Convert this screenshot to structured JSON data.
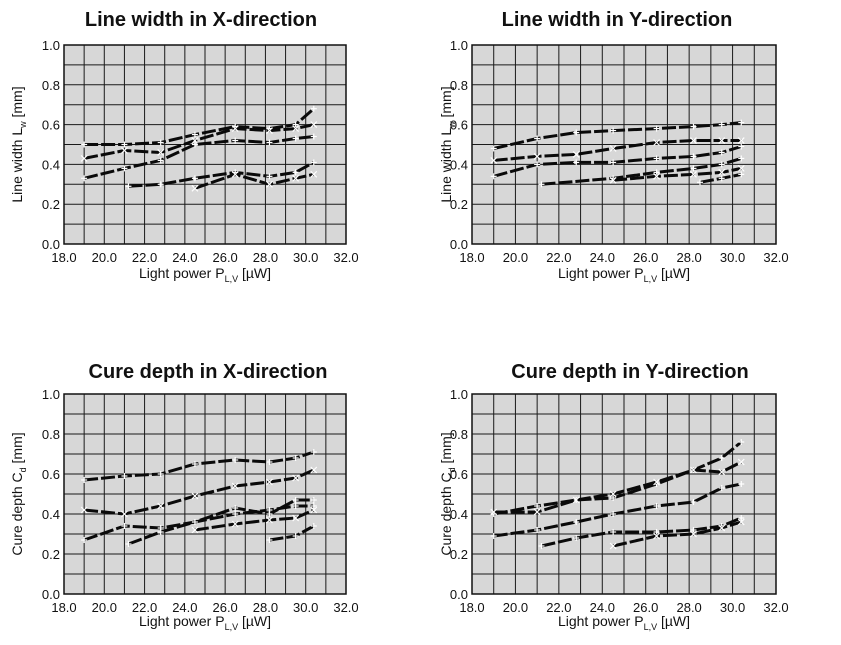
{
  "chart_data": [
    {
      "type": "line",
      "title": "Line width in X-direction",
      "xlabel": "Light power P",
      "xlabel_sub": "L,V",
      "xlabel_unit": " [µW]",
      "ylabel": "Line width L",
      "ylabel_sub": "w",
      "ylabel_unit": " [mm]",
      "xlim": [
        18.0,
        32.0
      ],
      "ylim": [
        0.0,
        1.0
      ],
      "xticks": [
        "18.0",
        "20.0",
        "22.0",
        "24.0",
        "26.0",
        "28.0",
        "30.0",
        "32.0"
      ],
      "yticks": [
        "0.0",
        "0.2",
        "0.4",
        "0.6",
        "0.8",
        "1.0"
      ],
      "grid": true,
      "series": [
        {
          "marker": "+",
          "points": [
            [
              19.0,
              0.5
            ],
            [
              21.0,
              0.5
            ],
            [
              22.8,
              0.51
            ],
            [
              24.5,
              0.55
            ],
            [
              26.5,
              0.59
            ],
            [
              28.2,
              0.58
            ],
            [
              29.5,
              0.6
            ],
            [
              30.4,
              0.68
            ]
          ]
        },
        {
          "marker": "x",
          "points": [
            [
              19.0,
              0.43
            ],
            [
              21.0,
              0.47
            ],
            [
              22.8,
              0.46
            ],
            [
              24.5,
              0.52
            ],
            [
              26.5,
              0.58
            ],
            [
              28.2,
              0.57
            ],
            [
              29.5,
              0.58
            ],
            [
              30.4,
              0.6
            ]
          ]
        },
        {
          "marker": "+",
          "points": [
            [
              19.0,
              0.33
            ],
            [
              21.0,
              0.38
            ],
            [
              22.8,
              0.42
            ],
            [
              24.5,
              0.5
            ],
            [
              26.5,
              0.52
            ],
            [
              28.2,
              0.51
            ],
            [
              29.5,
              0.53
            ],
            [
              30.4,
              0.54
            ]
          ]
        },
        {
          "marker": "+",
          "points": [
            [
              21.2,
              0.29
            ],
            [
              22.8,
              0.3
            ],
            [
              24.5,
              0.33
            ],
            [
              26.5,
              0.36
            ],
            [
              28.2,
              0.34
            ],
            [
              29.5,
              0.36
            ],
            [
              30.4,
              0.41
            ]
          ]
        },
        {
          "marker": "x",
          "points": [
            [
              24.5,
              0.28
            ],
            [
              26.5,
              0.35
            ],
            [
              28.2,
              0.3
            ],
            [
              29.5,
              0.33
            ],
            [
              30.4,
              0.35
            ]
          ]
        }
      ]
    },
    {
      "type": "line",
      "title": "Line width in Y-direction",
      "xlabel": "Light power P",
      "xlabel_sub": "L,V",
      "xlabel_unit": " [µW]",
      "ylabel": "Line width L",
      "ylabel_sub": "w",
      "ylabel_unit": " [mm]",
      "xlim": [
        18.0,
        32.0
      ],
      "ylim": [
        0.0,
        1.0
      ],
      "xticks": [
        "18.0",
        "20.0",
        "22.0",
        "24.0",
        "26.0",
        "28.0",
        "30.0",
        "32.0"
      ],
      "yticks": [
        "0.0",
        "0.2",
        "0.4",
        "0.6",
        "0.8",
        "1.0"
      ],
      "grid": true,
      "series": [
        {
          "marker": "+",
          "points": [
            [
              19.0,
              0.48
            ],
            [
              21.0,
              0.53
            ],
            [
              22.8,
              0.56
            ],
            [
              24.5,
              0.57
            ],
            [
              26.5,
              0.58
            ],
            [
              28.2,
              0.59
            ],
            [
              29.5,
              0.6
            ],
            [
              30.4,
              0.61
            ]
          ]
        },
        {
          "marker": "x",
          "points": [
            [
              19.0,
              0.42
            ],
            [
              21.0,
              0.44
            ],
            [
              22.8,
              0.45
            ],
            [
              24.5,
              0.48
            ],
            [
              26.5,
              0.51
            ],
            [
              28.2,
              0.52
            ],
            [
              29.5,
              0.52
            ],
            [
              30.4,
              0.52
            ]
          ]
        },
        {
          "marker": "+",
          "points": [
            [
              19.0,
              0.34
            ],
            [
              21.0,
              0.4
            ],
            [
              22.8,
              0.41
            ],
            [
              24.5,
              0.41
            ],
            [
              26.5,
              0.43
            ],
            [
              28.2,
              0.44
            ],
            [
              29.5,
              0.46
            ],
            [
              30.4,
              0.49
            ]
          ]
        },
        {
          "marker": "+",
          "points": [
            [
              21.2,
              0.3
            ],
            [
              24.5,
              0.33
            ],
            [
              26.5,
              0.36
            ],
            [
              28.2,
              0.38
            ],
            [
              29.5,
              0.4
            ],
            [
              30.4,
              0.43
            ]
          ]
        },
        {
          "marker": "x",
          "points": [
            [
              24.5,
              0.32
            ],
            [
              26.5,
              0.34
            ],
            [
              28.2,
              0.35
            ],
            [
              29.5,
              0.36
            ],
            [
              30.4,
              0.38
            ]
          ]
        },
        {
          "marker": "+",
          "points": [
            [
              28.5,
              0.31
            ],
            [
              29.5,
              0.33
            ],
            [
              30.4,
              0.35
            ]
          ]
        }
      ]
    },
    {
      "type": "line",
      "title": "Cure depth in X-direction",
      "xlabel": "Light power P",
      "xlabel_sub": "L,V",
      "xlabel_unit": " [µW]",
      "ylabel": "Cure depth C",
      "ylabel_sub": "d",
      "ylabel_unit": " [mm]",
      "xlim": [
        18.0,
        32.0
      ],
      "ylim": [
        0.0,
        1.0
      ],
      "xticks": [
        "18.0",
        "20.0",
        "22.0",
        "24.0",
        "26.0",
        "28.0",
        "30.0",
        "32.0"
      ],
      "yticks": [
        "0.0",
        "0.2",
        "0.4",
        "0.6",
        "0.8",
        "1.0"
      ],
      "grid": true,
      "series": [
        {
          "marker": "+",
          "points": [
            [
              19.0,
              0.57
            ],
            [
              21.0,
              0.59
            ],
            [
              22.8,
              0.6
            ],
            [
              24.5,
              0.65
            ],
            [
              26.5,
              0.67
            ],
            [
              28.2,
              0.66
            ],
            [
              29.5,
              0.68
            ],
            [
              30.4,
              0.71
            ]
          ]
        },
        {
          "marker": "x",
          "points": [
            [
              19.0,
              0.42
            ],
            [
              21.0,
              0.4
            ],
            [
              22.8,
              0.44
            ],
            [
              24.5,
              0.49
            ],
            [
              26.5,
              0.54
            ],
            [
              28.2,
              0.56
            ],
            [
              29.5,
              0.58
            ],
            [
              30.4,
              0.62
            ]
          ]
        },
        {
          "marker": "+",
          "points": [
            [
              19.0,
              0.27
            ],
            [
              21.0,
              0.34
            ],
            [
              22.8,
              0.33
            ],
            [
              24.5,
              0.36
            ],
            [
              26.5,
              0.43
            ],
            [
              28.2,
              0.4
            ],
            [
              29.5,
              0.47
            ],
            [
              30.4,
              0.47
            ]
          ]
        },
        {
          "marker": "+",
          "points": [
            [
              21.2,
              0.25
            ],
            [
              22.8,
              0.31
            ],
            [
              24.5,
              0.36
            ],
            [
              26.5,
              0.4
            ],
            [
              28.2,
              0.42
            ],
            [
              29.5,
              0.44
            ],
            [
              30.4,
              0.44
            ]
          ]
        },
        {
          "marker": "x",
          "points": [
            [
              24.5,
              0.32
            ],
            [
              26.5,
              0.35
            ],
            [
              28.2,
              0.37
            ],
            [
              29.5,
              0.38
            ],
            [
              30.4,
              0.42
            ]
          ]
        },
        {
          "marker": "+",
          "points": [
            [
              28.2,
              0.27
            ],
            [
              29.5,
              0.29
            ],
            [
              30.4,
              0.34
            ]
          ]
        }
      ]
    },
    {
      "type": "line",
      "title": "Cure depth in Y-direction",
      "xlabel": "Light power P",
      "xlabel_sub": "L,V",
      "xlabel_unit": " [µW]",
      "ylabel": "Cure depth C",
      "ylabel_sub": "d",
      "ylabel_unit": " [mm]",
      "xlim": [
        18.0,
        32.0
      ],
      "ylim": [
        0.0,
        1.0
      ],
      "xticks": [
        "18.0",
        "20.0",
        "22.0",
        "24.0",
        "26.0",
        "28.0",
        "30.0",
        "32.0"
      ],
      "yticks": [
        "0.0",
        "0.2",
        "0.4",
        "0.6",
        "0.8",
        "1.0"
      ],
      "grid": true,
      "series": [
        {
          "marker": "+",
          "points": [
            [
              19.0,
              0.4
            ],
            [
              21.0,
              0.44
            ],
            [
              22.8,
              0.47
            ],
            [
              24.5,
              0.48
            ],
            [
              26.5,
              0.55
            ],
            [
              28.2,
              0.62
            ],
            [
              29.5,
              0.68
            ],
            [
              30.4,
              0.76
            ]
          ]
        },
        {
          "marker": "x",
          "points": [
            [
              19.0,
              0.41
            ],
            [
              21.0,
              0.41
            ],
            [
              22.8,
              0.47
            ],
            [
              24.5,
              0.5
            ],
            [
              26.5,
              0.56
            ],
            [
              28.2,
              0.62
            ],
            [
              29.5,
              0.61
            ],
            [
              30.4,
              0.66
            ]
          ]
        },
        {
          "marker": "+",
          "points": [
            [
              19.0,
              0.29
            ],
            [
              21.0,
              0.32
            ],
            [
              22.8,
              0.36
            ],
            [
              24.5,
              0.4
            ],
            [
              26.5,
              0.44
            ],
            [
              28.2,
              0.46
            ],
            [
              29.5,
              0.53
            ],
            [
              30.4,
              0.55
            ]
          ]
        },
        {
          "marker": "+",
          "points": [
            [
              21.2,
              0.24
            ],
            [
              22.8,
              0.28
            ],
            [
              24.5,
              0.31
            ],
            [
              26.5,
              0.31
            ],
            [
              28.2,
              0.32
            ],
            [
              29.5,
              0.34
            ],
            [
              30.4,
              0.38
            ]
          ]
        },
        {
          "marker": "x",
          "points": [
            [
              24.5,
              0.24
            ],
            [
              26.5,
              0.29
            ],
            [
              28.2,
              0.3
            ],
            [
              29.5,
              0.33
            ],
            [
              30.4,
              0.36
            ]
          ]
        }
      ]
    }
  ]
}
